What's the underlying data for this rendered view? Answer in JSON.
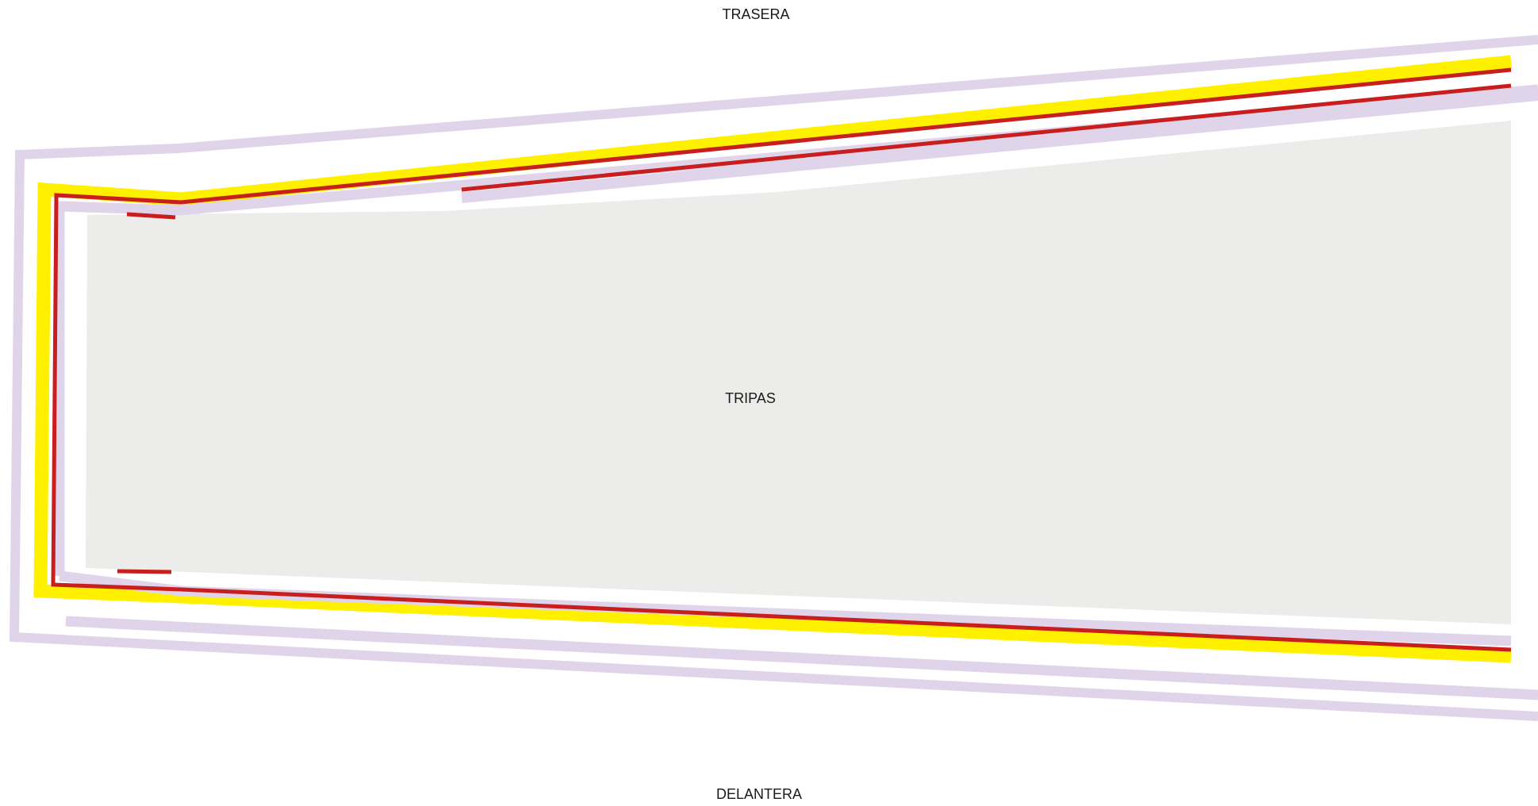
{
  "labels": {
    "top": "TRASERA",
    "center": "TRIPAS",
    "bottom": "DELANTERA"
  },
  "colors": {
    "background": "#ffffff",
    "field_fill": "#ececea",
    "lavender_band": "#e0d4ea",
    "yellow_band": "#fff000",
    "red_line": "#c81e1e",
    "label_text": "#1a1a1a"
  }
}
